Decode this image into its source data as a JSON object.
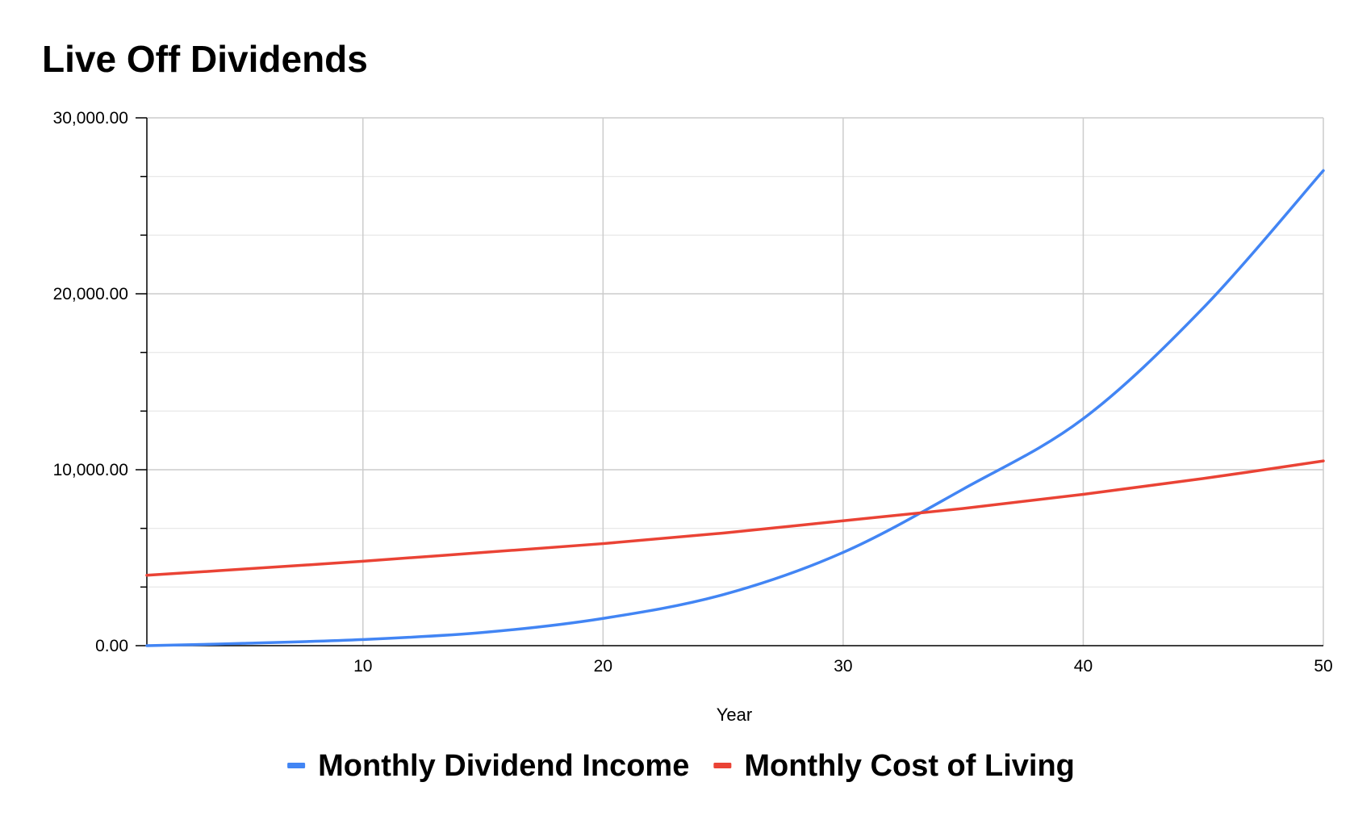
{
  "chart_data": {
    "type": "line",
    "title": "Live Off Dividends",
    "xlabel": "Year",
    "ylabel": "",
    "xlim": [
      1,
      50
    ],
    "ylim": [
      0,
      30000
    ],
    "x_ticks": [
      10,
      20,
      30,
      40,
      50
    ],
    "y_ticks": [
      0,
      10000,
      20000,
      30000
    ],
    "y_tick_labels": [
      "0.00",
      "10,000.00",
      "20,000.00",
      "30,000.00"
    ],
    "y_minor_ticks": [
      3333.33,
      6666.67,
      13333.33,
      16666.67,
      23333.33,
      26666.67
    ],
    "grid": true,
    "legend_position": "bottom",
    "series": [
      {
        "name": "Monthly Dividend Income",
        "color": "#4285F4",
        "x": [
          1,
          5,
          10,
          15,
          20,
          25,
          30,
          35,
          40,
          45,
          50
        ],
        "values": [
          0,
          130,
          350,
          750,
          1550,
          2900,
          5300,
          8900,
          12900,
          19200,
          27000
        ]
      },
      {
        "name": "Monthly Cost of Living",
        "color": "#EA4335",
        "x": [
          1,
          5,
          10,
          15,
          20,
          25,
          30,
          35,
          40,
          45,
          50
        ],
        "values": [
          4000,
          4350,
          4800,
          5300,
          5800,
          6400,
          7100,
          7800,
          8600,
          9500,
          10500
        ]
      }
    ]
  }
}
